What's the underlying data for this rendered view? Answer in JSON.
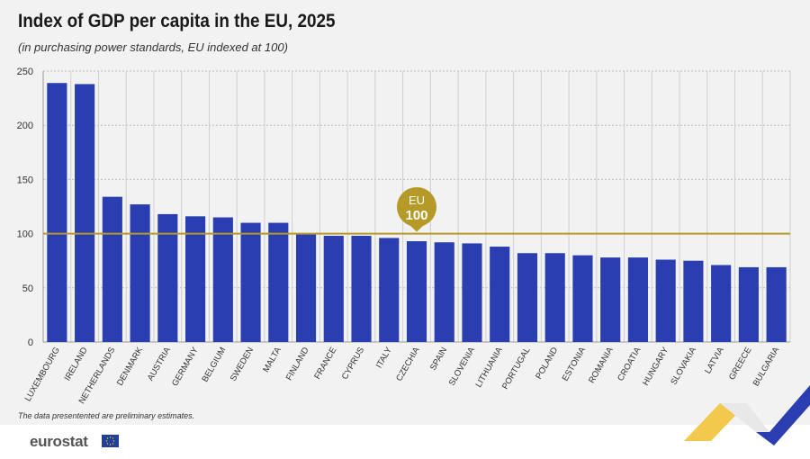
{
  "header": {
    "title": "Index of GDP per capita in the EU, 2025",
    "subtitle": "(in purchasing power standards, EU indexed at 100)"
  },
  "note": "The data presentented are preliminary estimates.",
  "footer": {
    "logo_text": "eurostat"
  },
  "colors": {
    "bar": "#2a3eb1",
    "reference": "#b59a28",
    "grid": "#bdbdbd",
    "panel": "#f2f2f2"
  },
  "chart_data": {
    "type": "bar",
    "categories": [
      "LUXEMBOURG",
      "IRELAND",
      "NETHERLANDS",
      "DENMARK",
      "AUSTRIA",
      "GERMANY",
      "BELGIUM",
      "SWEDEN",
      "MALTA",
      "FINLAND",
      "FRANCE",
      "CYPRUS",
      "ITALY",
      "CZECHIA",
      "SPAIN",
      "SLOVENIA",
      "LITHUANIA",
      "PORTUGAL",
      "POLAND",
      "ESTONIA",
      "ROMANIA",
      "CROATIA",
      "HUNGARY",
      "SLOVAKIA",
      "LATVIA",
      "GREECE",
      "BULGARIA"
    ],
    "values": [
      239,
      238,
      134,
      127,
      118,
      116,
      115,
      110,
      110,
      100,
      98,
      98,
      96,
      93,
      92,
      91,
      88,
      82,
      82,
      80,
      78,
      78,
      76,
      75,
      71,
      69,
      69
    ],
    "ylim": [
      0,
      250
    ],
    "yticks": [
      0,
      50,
      100,
      150,
      200,
      250
    ],
    "grid": true,
    "reference_line": {
      "value": 100,
      "label_top": "EU",
      "label_bottom": "100"
    }
  }
}
